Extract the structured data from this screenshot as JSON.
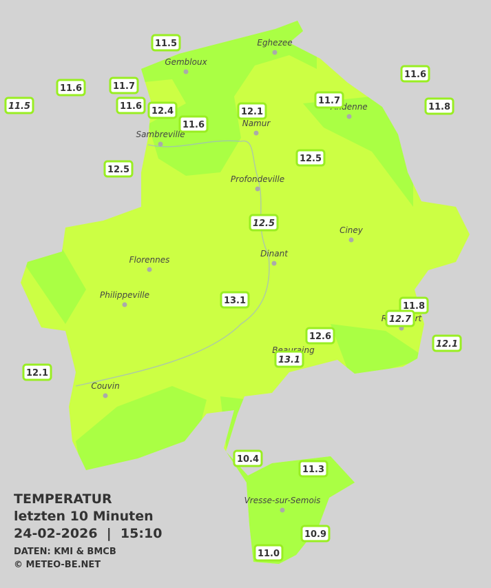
{
  "header": {
    "title": "TEMPERATUR",
    "subtitle": "letzten 10 Minuten",
    "timestamp": "24-02-2026  |  15:10",
    "source": "DATEN: KMI & BMCB",
    "copyright": "© METEO-BE.NET"
  },
  "towns": [
    "Eghezee",
    "Gembloux",
    "Andenne",
    "Namur",
    "Sambreville",
    "Profondeville",
    "Ciney",
    "Dinant",
    "Florennes",
    "Philippeville",
    "Beauraing",
    "Rochefort",
    "Couvin",
    "Vresse-sur-Semois"
  ],
  "stations": [
    {
      "label": "11.5",
      "italic": false
    },
    {
      "label": "11.6",
      "italic": false
    },
    {
      "label": "11.7",
      "italic": false
    },
    {
      "label": "11.6",
      "italic": false
    },
    {
      "label": "12.4",
      "italic": false
    },
    {
      "label": "11.6",
      "italic": false
    },
    {
      "label": "11.5",
      "italic": true
    },
    {
      "label": "12.5",
      "italic": false
    },
    {
      "label": "12.1",
      "italic": false
    },
    {
      "label": "11.7",
      "italic": false
    },
    {
      "label": "11.6",
      "italic": false
    },
    {
      "label": "11.8",
      "italic": false
    },
    {
      "label": "12.5",
      "italic": false
    },
    {
      "label": "12.5",
      "italic": true
    },
    {
      "label": "13.1",
      "italic": false
    },
    {
      "label": "11.8",
      "italic": false
    },
    {
      "label": "12.7",
      "italic": true
    },
    {
      "label": "12.1",
      "italic": true
    },
    {
      "label": "12.6",
      "italic": false
    },
    {
      "label": "13.1",
      "italic": true
    },
    {
      "label": "12.1",
      "italic": false
    },
    {
      "label": "10.4",
      "italic": false
    },
    {
      "label": "11.3",
      "italic": false
    },
    {
      "label": "10.9",
      "italic": false
    },
    {
      "label": "11.0",
      "italic": false
    }
  ]
}
